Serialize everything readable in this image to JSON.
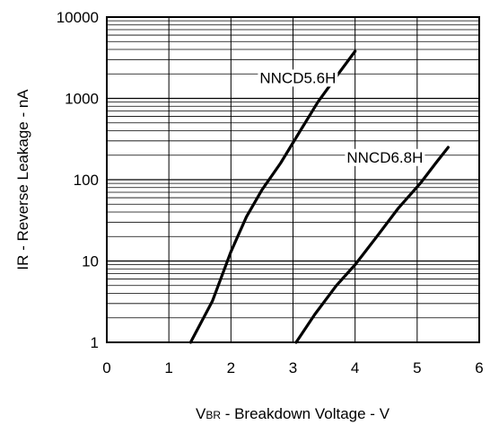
{
  "chart_data": {
    "type": "line",
    "title": "",
    "xlabel_main": "V",
    "xlabel_sub": "BR",
    "xlabel_rest": " - Breakdown Voltage - V",
    "ylabel": "IR - Reverse Leakage - nA",
    "xlim": [
      0,
      6
    ],
    "ylim": [
      1,
      10000
    ],
    "y_scale": "log",
    "grid": true,
    "x_ticks": [
      "0",
      "1",
      "2",
      "3",
      "4",
      "5",
      "6"
    ],
    "y_ticks": [
      "1",
      "10",
      "100",
      "1000",
      "10000"
    ],
    "series": [
      {
        "name": "NNCD5.6H",
        "points": [
          [
            1.35,
            1
          ],
          [
            1.7,
            3.2
          ],
          [
            2.0,
            13
          ],
          [
            2.25,
            35
          ],
          [
            2.5,
            75
          ],
          [
            2.8,
            160
          ],
          [
            3.1,
            380
          ],
          [
            3.4,
            900
          ],
          [
            3.75,
            2100
          ],
          [
            4.0,
            3800
          ]
        ]
      },
      {
        "name": "NNCD6.8H",
        "points": [
          [
            3.05,
            1
          ],
          [
            3.35,
            2.2
          ],
          [
            3.7,
            5
          ],
          [
            4.0,
            9
          ],
          [
            4.35,
            20
          ],
          [
            4.7,
            45
          ],
          [
            5.05,
            90
          ],
          [
            5.3,
            160
          ],
          [
            5.5,
            250
          ]
        ]
      }
    ]
  }
}
